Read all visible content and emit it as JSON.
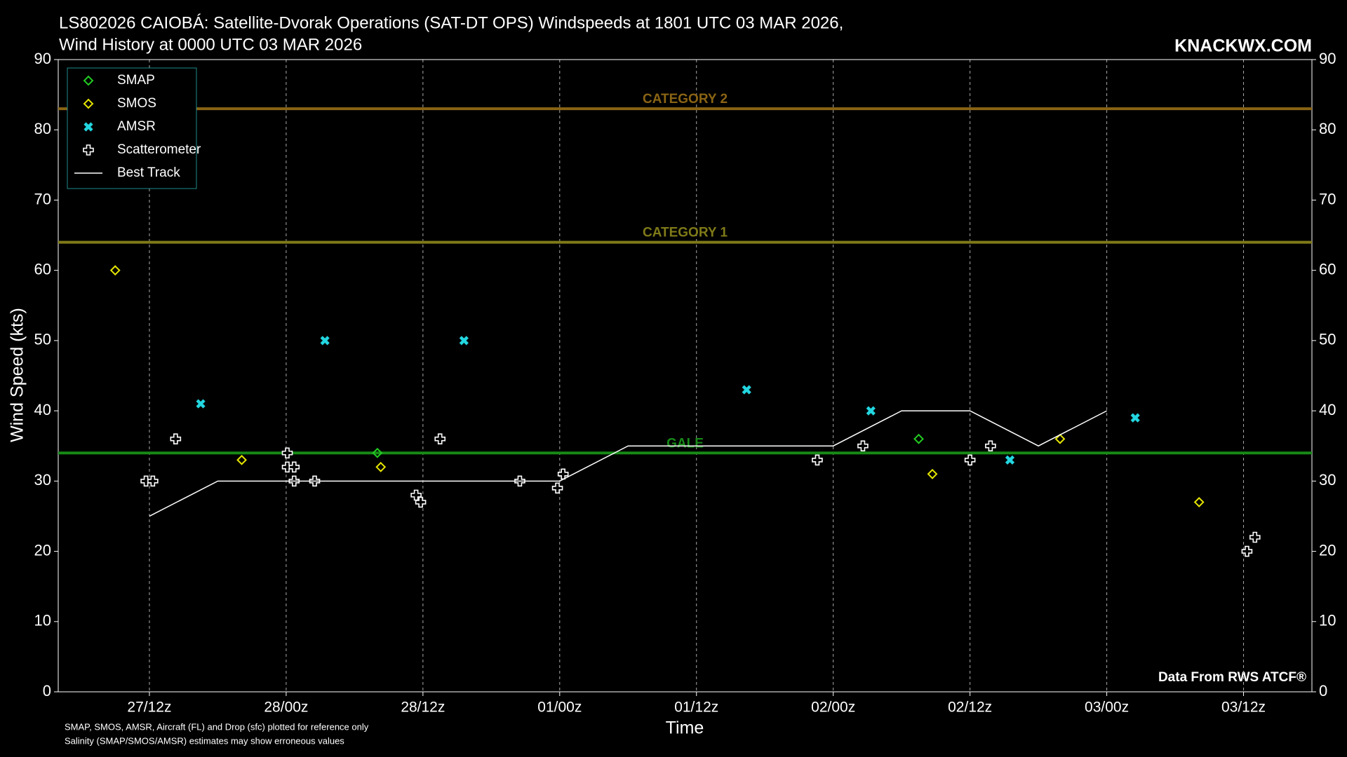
{
  "chart_data": {
    "type": "scatter",
    "title": [
      "LS802026 CAIOBÁ: Satellite-Dvorak Operations (SAT-DT OPS) Windspeeds at 1801 UTC 03 MAR 2026,",
      "Wind History at 0000 UTC 03 MAR 2026"
    ],
    "watermark": "KNACKWX.COM",
    "source": "Data From RWS ATCF®",
    "footnotes": [
      "SMAP, SMOS, AMSR, Aircraft (FL) and Drop (sfc) plotted for reference only",
      "Salinity (SMAP/SMOS/AMSR) estimates may show erroneous values"
    ],
    "x_label": "Time",
    "y_label": "Wind Speed (kts)",
    "xlim": [
      4,
      114
    ],
    "xticks": [
      {
        "value": 12,
        "label": "27/12z"
      },
      {
        "value": 24,
        "label": "28/00z"
      },
      {
        "value": 36,
        "label": "28/12z"
      },
      {
        "value": 48,
        "label": "01/00z"
      },
      {
        "value": 60,
        "label": "01/12z"
      },
      {
        "value": 72,
        "label": "02/00z"
      },
      {
        "value": 84,
        "label": "02/12z"
      },
      {
        "value": 96,
        "label": "03/00z"
      },
      {
        "value": 108,
        "label": "03/12z"
      }
    ],
    "ylim": [
      0,
      90
    ],
    "yticks": [
      0,
      10,
      20,
      30,
      40,
      50,
      60,
      70,
      80,
      90
    ],
    "y2lim": [
      0,
      90
    ],
    "y2ticks": [
      0,
      10,
      20,
      30,
      40,
      50,
      60,
      70,
      80,
      90
    ],
    "x_grid": true,
    "legend": "upper left",
    "hlines": [
      {
        "label": "CATEGORY 2",
        "value": 83,
        "color": "#8a6414"
      },
      {
        "label": "CATEGORY 1",
        "value": 64,
        "color": "#7f7a18"
      },
      {
        "label": "GALE",
        "value": 34,
        "color": "#178a17"
      }
    ],
    "series": [
      {
        "name": "SMAP",
        "type": "scatter",
        "marker": "diamond",
        "color": "#22cc22",
        "x": [
          32,
          79.5
        ],
        "values": [
          34,
          36
        ]
      },
      {
        "name": "SMOS",
        "type": "scatter",
        "marker": "diamond",
        "color": "#e6e600",
        "x": [
          9,
          20.1,
          32.3,
          80.7,
          91.9,
          104.1
        ],
        "values": [
          60,
          33,
          32,
          31,
          36,
          27
        ]
      },
      {
        "name": "AMSR",
        "type": "scatter",
        "marker": "x",
        "color": "#22d6e0",
        "x": [
          16.5,
          27.4,
          39.6,
          64.4,
          75.3,
          87.5,
          98.5
        ],
        "values": [
          41,
          50,
          50,
          43,
          40,
          33,
          39
        ]
      },
      {
        "name": "Scatterometer",
        "type": "scatter",
        "marker": "plus",
        "color": "#ffffff",
        "x": [
          11.7,
          12.3,
          14.3,
          24.1,
          24.1,
          24.7,
          24.7,
          26.5,
          35.4,
          35.8,
          37.5,
          44.5,
          47.8,
          48.3,
          70.6,
          74.6,
          84.0,
          85.8,
          108.3,
          109.0
        ],
        "values": [
          30,
          30,
          36,
          34,
          32,
          32,
          30,
          30,
          28,
          27,
          36,
          30,
          29,
          31,
          33,
          35,
          33,
          35,
          20,
          22
        ]
      },
      {
        "name": "Best Track",
        "type": "line",
        "marker": "line",
        "color": "#ffffff",
        "x": [
          12,
          18,
          48,
          54,
          72,
          78,
          84,
          90,
          96
        ],
        "values": [
          25,
          30,
          30,
          35,
          35,
          40,
          40,
          35,
          40
        ]
      }
    ]
  }
}
